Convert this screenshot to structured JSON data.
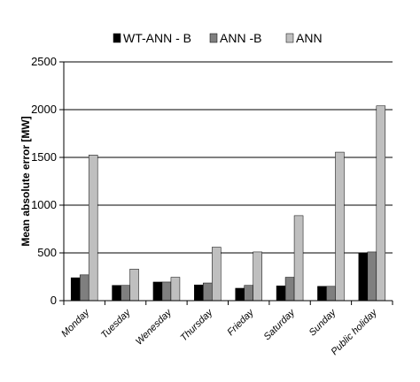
{
  "chart_data": {
    "type": "bar",
    "title": "",
    "xlabel": "",
    "ylabel": "Mean absolute error [MW]",
    "ylim": [
      0,
      2500
    ],
    "yticks": [
      0,
      500,
      1000,
      1500,
      2000,
      2500
    ],
    "grid": true,
    "legend_position": "top",
    "categories": [
      "Monday",
      "Tuesday",
      "Wenesday",
      "Thursday",
      "Frieday",
      "Saturday",
      "Sunday",
      "Public holiday"
    ],
    "series": [
      {
        "name": "WT-ANN - B",
        "color": "#000000",
        "values": [
          240,
          160,
          195,
          165,
          130,
          155,
          150,
          500
        ]
      },
      {
        "name": "ANN -B",
        "color": "#7f7f7f",
        "values": [
          270,
          160,
          195,
          185,
          160,
          245,
          150,
          510
        ]
      },
      {
        "name": "ANN",
        "color": "#bfbfbf",
        "values": [
          1525,
          330,
          245,
          560,
          510,
          890,
          1555,
          2040
        ]
      }
    ]
  }
}
